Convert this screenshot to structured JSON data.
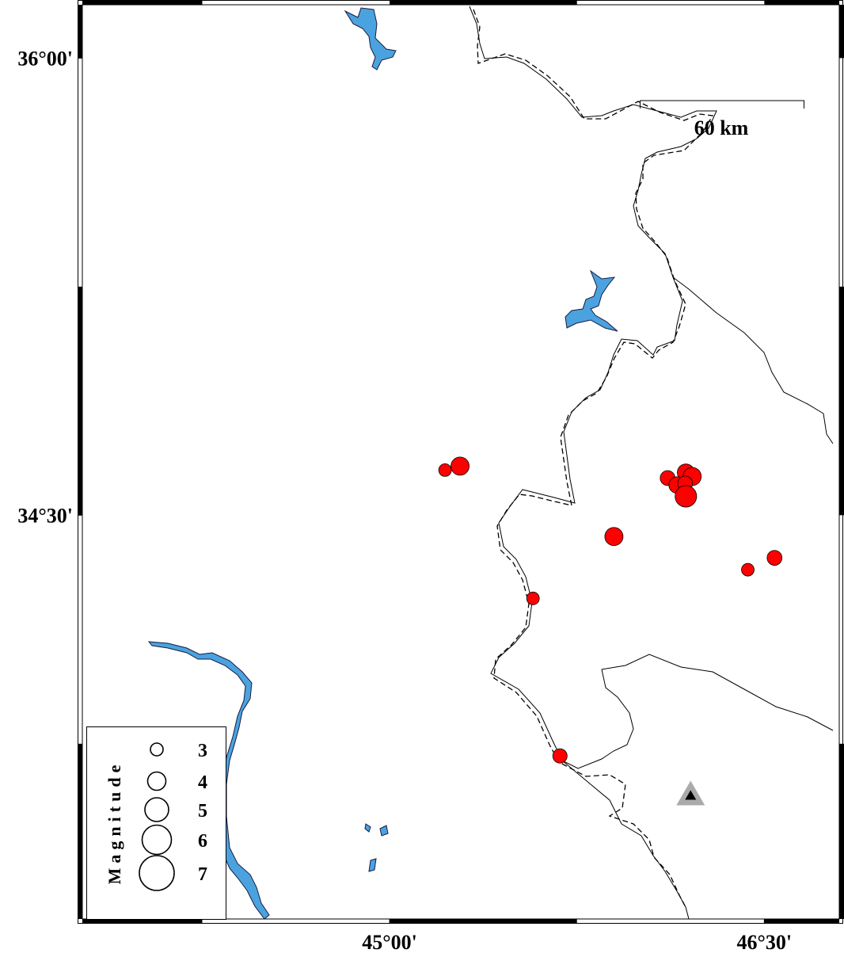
{
  "map": {
    "xlim": [
      43.77,
      46.8
    ],
    "ylim": [
      33.175,
      36.175
    ],
    "lon_ticks": [
      {
        "value": 45,
        "label": "45°00'"
      },
      {
        "value": 46.5,
        "label": "46°30'"
      }
    ],
    "lat_ticks": [
      {
        "value": 36,
        "label": "36°00'"
      },
      {
        "value": 34.5,
        "label": "34°30'"
      }
    ],
    "scale_label": "60 km",
    "legend": {
      "title": "Magnitude",
      "magnitudes": [
        3,
        4,
        5,
        6,
        7
      ]
    },
    "events": [
      {
        "lon": 45.222,
        "lat": 34.648,
        "mag": 3.0
      },
      {
        "lon": 45.282,
        "lat": 34.661,
        "mag": 4.0
      },
      {
        "lon": 45.898,
        "lat": 34.43,
        "mag": 4.0
      },
      {
        "lon": 45.574,
        "lat": 34.227,
        "mag": 3.0
      },
      {
        "lon": 45.682,
        "lat": 33.71,
        "mag": 3.3
      },
      {
        "lon": 46.434,
        "lat": 34.321,
        "mag": 3.0
      },
      {
        "lon": 46.541,
        "lat": 34.36,
        "mag": 3.4
      },
      {
        "lon": 46.113,
        "lat": 34.622,
        "mag": 3.4
      },
      {
        "lon": 46.186,
        "lat": 34.64,
        "mag": 3.8
      },
      {
        "lon": 46.211,
        "lat": 34.627,
        "mag": 4.0
      },
      {
        "lon": 46.151,
        "lat": 34.599,
        "mag": 3.7
      },
      {
        "lon": 46.183,
        "lat": 34.604,
        "mag": 3.4
      },
      {
        "lon": 46.186,
        "lat": 34.562,
        "mag": 4.6
      }
    ],
    "station": {
      "lon": 46.205,
      "lat": 33.582
    }
  }
}
